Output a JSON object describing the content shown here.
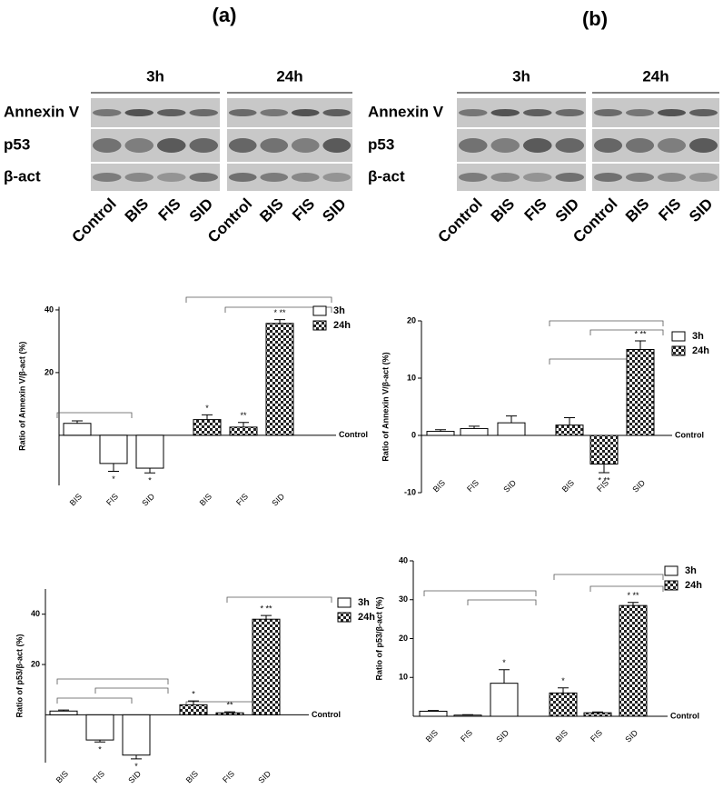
{
  "panels": [
    {
      "label": "(a)",
      "blot": {
        "groups": [
          "3h",
          "24h"
        ],
        "rows": [
          "Annexin V",
          "p53",
          "β-act"
        ],
        "lanes": [
          "Control",
          "BIS",
          "FIS",
          "SID",
          "Control",
          "BIS",
          "FIS",
          "SID"
        ]
      }
    },
    {
      "label": "(b)",
      "blot": {
        "groups": [
          "3h",
          "24h"
        ],
        "rows": [
          "Annexin V",
          "p53",
          "β-act"
        ],
        "lanes": [
          "Control",
          "BIS",
          "FIS",
          "SID",
          "Control",
          "BIS",
          "FIS",
          "SID"
        ]
      }
    }
  ],
  "chart_data": [
    {
      "type": "bar",
      "ylabel": "Ratio of Annexin V/β-act (%)",
      "zero_label": "Control",
      "categories": [
        "BIS",
        "FIS",
        "SID"
      ],
      "series": [
        {
          "name": "3h",
          "fill": "white",
          "values": [
            3.8,
            -9,
            -10.5
          ],
          "errors": [
            0.8,
            2.5,
            1.5
          ],
          "marks": [
            null,
            "*",
            "*"
          ]
        },
        {
          "name": "24h",
          "fill": "checkered",
          "values": [
            5,
            2.6,
            35.7
          ],
          "errors": [
            1.5,
            1.5,
            1.2
          ],
          "marks": [
            "*",
            "**",
            "* **"
          ]
        }
      ],
      "ylim": [
        -16,
        41
      ],
      "yticks": [
        20,
        40
      ]
    },
    {
      "type": "bar",
      "ylabel": "Ratio of Annexin V/β-act (%)",
      "zero_label": "Control",
      "categories": [
        "BIS",
        "FIS",
        "SID"
      ],
      "series": [
        {
          "name": "3h",
          "fill": "white",
          "values": [
            0.7,
            1.2,
            2.2
          ],
          "errors": [
            0.3,
            0.4,
            1.2
          ],
          "marks": [
            null,
            null,
            null
          ]
        },
        {
          "name": "24h",
          "fill": "checkered",
          "values": [
            1.8,
            -5,
            15
          ],
          "errors": [
            1.3,
            1.5,
            1.5
          ],
          "marks": [
            null,
            "* **",
            "* **"
          ]
        }
      ],
      "ylim": [
        -10,
        20
      ],
      "yticks": [
        -10,
        0,
        10,
        20
      ]
    },
    {
      "type": "bar",
      "ylabel": "Ratio of p53/β-act (%)",
      "zero_label": "Control",
      "categories": [
        "BIS",
        "FIS",
        "SID"
      ],
      "series": [
        {
          "name": "3h",
          "fill": "white",
          "values": [
            1.5,
            -10,
            -16
          ],
          "errors": [
            0.4,
            0.8,
            1.5
          ],
          "marks": [
            null,
            "*",
            "*"
          ]
        },
        {
          "name": "24h",
          "fill": "checkered",
          "values": [
            4,
            0.8,
            38
          ],
          "errors": [
            1.5,
            0.4,
            1.5
          ],
          "marks": [
            "*",
            "**",
            "* **"
          ]
        }
      ],
      "ylim": [
        -19,
        50
      ],
      "yticks": [
        20,
        40
      ]
    },
    {
      "type": "bar",
      "ylabel": "Ratio of p53/β-act (%)",
      "zero_label": "Control",
      "categories": [
        "BIS",
        "FIS",
        "SID"
      ],
      "series": [
        {
          "name": "3h",
          "fill": "white",
          "values": [
            1.3,
            0.3,
            8.5
          ],
          "errors": [
            0.2,
            0.1,
            3.5
          ],
          "marks": [
            null,
            null,
            "*"
          ]
        },
        {
          "name": "24h",
          "fill": "checkered",
          "values": [
            6,
            0.9,
            28.5
          ],
          "errors": [
            1.3,
            0.2,
            0.8
          ],
          "marks": [
            "*",
            null,
            "* **"
          ]
        }
      ],
      "ylim": [
        0,
        40
      ],
      "yticks": [
        10,
        20,
        30,
        40
      ]
    }
  ]
}
